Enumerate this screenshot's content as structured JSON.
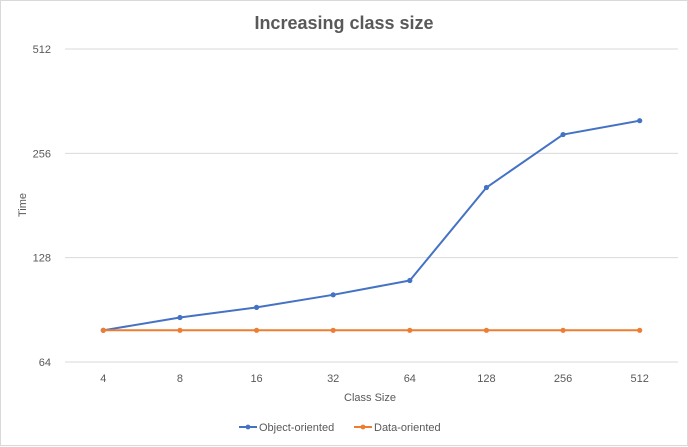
{
  "chart_data": {
    "type": "line",
    "title": "Increasing class size",
    "xlabel": "Class Size",
    "ylabel": "Time",
    "categories": [
      "4",
      "8",
      "16",
      "32",
      "64",
      "128",
      "256",
      "512"
    ],
    "y_scale": "log2",
    "ylim": [
      64,
      512
    ],
    "y_ticks": [
      "64",
      "128",
      "256",
      "512"
    ],
    "grid": true,
    "legend_position": "bottom",
    "series": [
      {
        "name": "Object-oriented",
        "color": "#4472C4",
        "values": [
          79,
          86,
          92,
          100,
          110,
          204,
          290,
          318
        ]
      },
      {
        "name": "Data-oriented",
        "color": "#ED7D31",
        "values": [
          79,
          79,
          79,
          79,
          79,
          79,
          79,
          79
        ]
      }
    ]
  }
}
